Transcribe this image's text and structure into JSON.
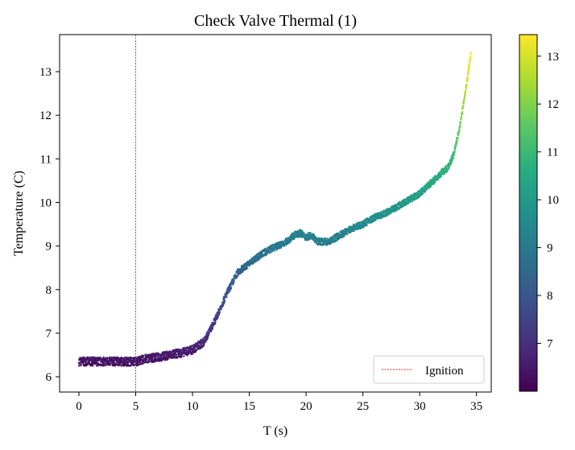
{
  "chart_data": {
    "type": "scatter",
    "title": "Check Valve Thermal (1)",
    "xlabel": "T (s)",
    "ylabel": "Temperature (C)",
    "xlim": [
      -1.7,
      36.3
    ],
    "ylim": [
      5.65,
      13.85
    ],
    "xticks": [
      0,
      5,
      10,
      15,
      20,
      25,
      30,
      35
    ],
    "yticks": [
      6,
      7,
      8,
      9,
      10,
      11,
      12,
      13
    ],
    "grid": false,
    "legend": {
      "placement": "lower-right",
      "entries": [
        "Ignition"
      ]
    },
    "annotations": [
      {
        "type": "vertical-line",
        "x": 5,
        "label": "Ignition",
        "color": "#d62728",
        "style": "dashed"
      }
    ],
    "colormap": "viridis",
    "colorbar": {
      "range": [
        6.0,
        13.45
      ],
      "ticks": [
        7,
        8,
        9,
        10,
        11,
        12,
        13
      ]
    },
    "series": [
      {
        "x": [
          0,
          1,
          2,
          3,
          4,
          5,
          6,
          7,
          8,
          9,
          10,
          11,
          12,
          13,
          14,
          15,
          16,
          17,
          18,
          19,
          19.5,
          20,
          20.5,
          21,
          22,
          23,
          24,
          25,
          26,
          27,
          28,
          29,
          30,
          31,
          32,
          32.5,
          33,
          33.5,
          34,
          34.5
        ],
        "y": [
          6.35,
          6.35,
          6.35,
          6.35,
          6.35,
          6.35,
          6.42,
          6.45,
          6.5,
          6.55,
          6.62,
          6.8,
          7.3,
          7.9,
          8.4,
          8.6,
          8.8,
          8.95,
          9.05,
          9.25,
          9.3,
          9.2,
          9.25,
          9.1,
          9.1,
          9.25,
          9.4,
          9.5,
          9.65,
          9.75,
          9.9,
          10.05,
          10.2,
          10.45,
          10.7,
          10.8,
          11.1,
          11.7,
          12.5,
          13.4
        ]
      }
    ]
  }
}
